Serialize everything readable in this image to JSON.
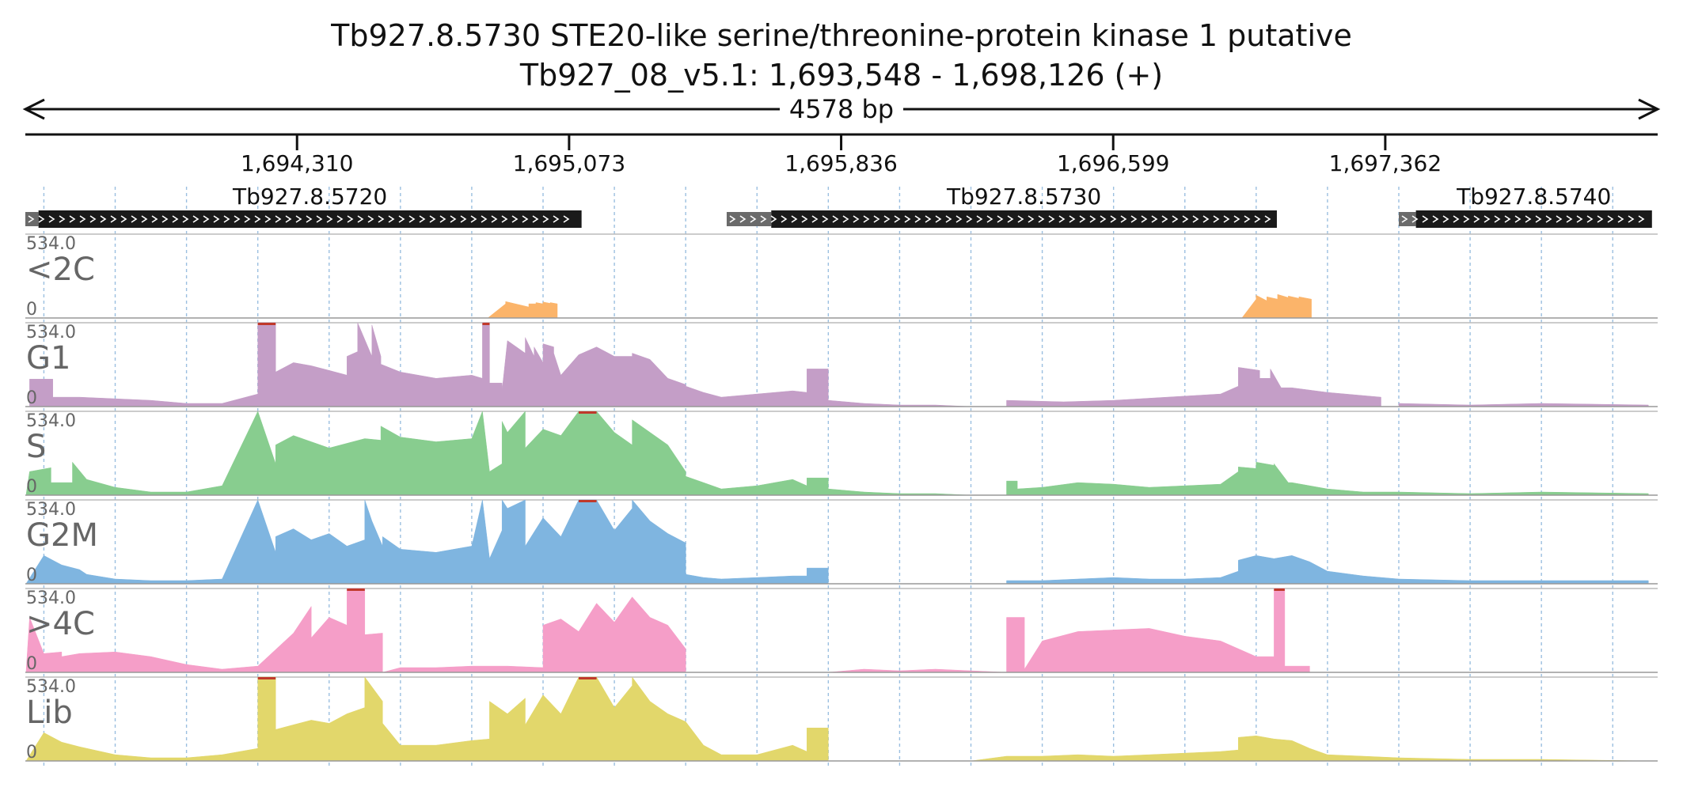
{
  "header": {
    "title": "Tb927.8.5730  STE20-like serine/threonine-protein kinase 1  putative",
    "location": "Tb927_08_v5.1: 1,693,548 - 1,698,126 (+)",
    "span_label": "4578 bp"
  },
  "chart_data": {
    "type": "area",
    "region": {
      "chromosome": "Tb927_08_v5.1",
      "start": 1693548,
      "end": 1698126,
      "strand": "+"
    },
    "x_ticks": [
      {
        "value": 1694310,
        "label": "1,694,310"
      },
      {
        "value": 1695073,
        "label": "1,695,073"
      },
      {
        "value": 1695836,
        "label": "1,695,836"
      },
      {
        "value": 1696599,
        "label": "1,696,599"
      },
      {
        "value": 1697362,
        "label": "1,697,362"
      }
    ],
    "grid": true,
    "genes": [
      {
        "name": "Tb927.8.5720",
        "utr5_start": 1693548,
        "start": 1693585,
        "end": 1695108
      },
      {
        "name": "Tb927.8.5730",
        "utr5_start": 1695515,
        "start": 1695640,
        "end": 1697058
      },
      {
        "name": "Tb927.8.5740",
        "utr5_start": 1697400,
        "start": 1697448,
        "end": 1698110
      }
    ],
    "tracks": [
      {
        "name": "<2C",
        "max_label": "534.0",
        "min_label": "0",
        "ylim": [
          0,
          534
        ],
        "color": "#fbb46a",
        "segments": [
          {
            "x": [
              1694845,
              1694895,
              1694895,
              1694960,
              1694960,
              1694980,
              1694980,
              1695000,
              1695000,
              1695020,
              1695020,
              1695040,
              1695040
            ],
            "y": [
              0,
              90,
              105,
              70,
              90,
              90,
              98,
              90,
              102,
              93,
              98,
              90,
              0
            ]
          },
          {
            "x": [
              1696960,
              1697000,
              1697000,
              1697030,
              1697030,
              1697060,
              1697060,
              1697090,
              1697090,
              1697120,
              1697120,
              1697155,
              1697155
            ],
            "y": [
              0,
              120,
              145,
              110,
              135,
              120,
              150,
              130,
              140,
              125,
              135,
              120,
              0
            ]
          }
        ]
      },
      {
        "name": "G1",
        "max_label": "534.0",
        "min_label": "0",
        "ylim": [
          0,
          534
        ],
        "color": "#c49ec7",
        "segments": [
          {
            "x": [
              1693550,
              1693560,
              1693560,
              1693625,
              1693625,
              1693700,
              1693800,
              1693900,
              1694000,
              1694100,
              1694200,
              1694200,
              1694250,
              1694250,
              1694300,
              1694350,
              1694400,
              1694450,
              1694450,
              1694480,
              1694480,
              1694520,
              1694520,
              1694545,
              1694545,
              1694600,
              1694700,
              1694800,
              1694830,
              1694830,
              1694850,
              1694850,
              1694885,
              1694885,
              1694900,
              1694950,
              1694950,
              1694975,
              1694975,
              1695000,
              1695000,
              1695030,
              1695030,
              1695050,
              1695100,
              1695150,
              1695200,
              1695250,
              1695250,
              1695300,
              1695350,
              1695400,
              1695400,
              1695450,
              1695500,
              1695600,
              1695700,
              1695740,
              1695740,
              1695800,
              1695800,
              1695900,
              1696000,
              1696100,
              1696200,
              1696300,
              1696300,
              1696460,
              1696600,
              1696750,
              1696900,
              1696950,
              1696950,
              1697010,
              1697010,
              1697040,
              1697040,
              1697070,
              1697100,
              1697200,
              1697300,
              1697350,
              1697350,
              1697400,
              1697400,
              1697600,
              1697800,
              1698100,
              1698100
            ],
            "y": [
              0,
              0,
              175,
              175,
              60,
              60,
              50,
              40,
              20,
              20,
              80,
              534,
              534,
              220,
              280,
              260,
              230,
              200,
              320,
              350,
              534,
              320,
              520,
              320,
              270,
              220,
              180,
              200,
              180,
              534,
              534,
              150,
              150,
              100,
              420,
              340,
              440,
              320,
              380,
              280,
              400,
              380,
              340,
              200,
              330,
              380,
              320,
              320,
              340,
              300,
              180,
              140,
              130,
              90,
              60,
              80,
              100,
              90,
              240,
              240,
              40,
              20,
              10,
              10,
              0,
              0,
              40,
              30,
              40,
              60,
              80,
              130,
              250,
              230,
              180,
              180,
              240,
              120,
              120,
              90,
              70,
              60,
              0,
              0,
              20,
              10,
              20,
              10,
              0
            ]
          }
        ]
      },
      {
        "name": "S",
        "max_label": "534.0",
        "min_label": "0",
        "ylim": [
          0,
          534
        ],
        "color": "#88cd8f",
        "segments": [
          {
            "x": [
              1693550,
              1693560,
              1693620,
              1693620,
              1693680,
              1693680,
              1693720,
              1693800,
              1693900,
              1694000,
              1694100,
              1694200,
              1694200,
              1694250,
              1694250,
              1694300,
              1694400,
              1694500,
              1694545,
              1694545,
              1694600,
              1694700,
              1694800,
              1694830,
              1694830,
              1694850,
              1694850,
              1694885,
              1694885,
              1694900,
              1694950,
              1694950,
              1695000,
              1695050,
              1695100,
              1695150,
              1695200,
              1695250,
              1695250,
              1695300,
              1695350,
              1695400,
              1695400,
              1695450,
              1695500,
              1695600,
              1695700,
              1695740,
              1695740,
              1695800,
              1695800,
              1695900,
              1696000,
              1696100,
              1696200,
              1696300,
              1696300,
              1696330,
              1696330,
              1696400,
              1696500,
              1696600,
              1696700,
              1696800,
              1696900,
              1696950,
              1696950,
              1697000,
              1697000,
              1697050,
              1697050,
              1697090,
              1697100,
              1697200,
              1697300,
              1697400,
              1697600,
              1697800,
              1698100,
              1698100
            ],
            "y": [
              0,
              150,
              175,
              80,
              80,
              210,
              100,
              50,
              20,
              20,
              60,
              534,
              534,
              200,
              320,
              380,
              300,
              360,
              350,
              440,
              370,
              340,
              360,
              534,
              534,
              150,
              150,
              200,
              470,
              400,
              534,
              300,
              420,
              380,
              534,
              534,
              400,
              320,
              480,
              400,
              320,
              150,
              120,
              80,
              40,
              60,
              100,
              60,
              110,
              110,
              40,
              20,
              10,
              10,
              0,
              0,
              90,
              90,
              40,
              50,
              80,
              70,
              50,
              60,
              70,
              150,
              180,
              170,
              210,
              190,
              200,
              80,
              80,
              40,
              20,
              20,
              10,
              20,
              10,
              0
            ]
          }
        ]
      },
      {
        "name": "G2M",
        "max_label": "534.0",
        "min_label": "0",
        "ylim": [
          0,
          534
        ],
        "color": "#7fb5e0",
        "segments": [
          {
            "x": [
              1693550,
              1693600,
              1693650,
              1693700,
              1693720,
              1693800,
              1693900,
              1694000,
              1694100,
              1694200,
              1694200,
              1694250,
              1694250,
              1694300,
              1694350,
              1694400,
              1694450,
              1694500,
              1694500,
              1694520,
              1694550,
              1694550,
              1694600,
              1694700,
              1694800,
              1694830,
              1694830,
              1694850,
              1694850,
              1694885,
              1694885,
              1694900,
              1694950,
              1694950,
              1695000,
              1695050,
              1695100,
              1695150,
              1695200,
              1695250,
              1695250,
              1695300,
              1695350,
              1695400,
              1695400,
              1695450,
              1695500,
              1695600,
              1695700,
              1695740,
              1695740,
              1695800,
              1695800,
              1695900,
              1696000,
              1696100,
              1696200,
              1696300,
              1696300,
              1696400,
              1696500,
              1696600,
              1696700,
              1696800,
              1696900,
              1696950,
              1696950,
              1697000,
              1697050,
              1697100,
              1697150,
              1697200,
              1697300,
              1697400,
              1697600,
              1697800,
              1698000,
              1698100,
              1698100
            ],
            "y": [
              0,
              180,
              120,
              90,
              60,
              30,
              20,
              20,
              30,
              534,
              534,
              200,
              300,
              350,
              280,
              320,
              240,
              280,
              534,
              400,
              240,
              300,
              220,
              200,
              240,
              534,
              534,
              160,
              160,
              340,
              534,
              480,
              534,
              240,
              420,
              300,
              534,
              534,
              340,
              480,
              534,
              400,
              320,
              260,
              60,
              40,
              30,
              40,
              50,
              50,
              100,
              100,
              0,
              0,
              0,
              0,
              0,
              0,
              20,
              20,
              30,
              40,
              30,
              30,
              40,
              80,
              150,
              180,
              160,
              180,
              140,
              80,
              50,
              30,
              20,
              20,
              20,
              20,
              0
            ]
          }
        ]
      },
      {
        "name": ">4C",
        "max_label": "534.0",
        "min_label": "0",
        "ylim": [
          0,
          534
        ],
        "color": "#f59ec8",
        "segments": [
          {
            "x": [
              1693550,
              1693560,
              1693600,
              1693650,
              1693650,
              1693700,
              1693800,
              1693900,
              1694000,
              1694100,
              1694200,
              1694300,
              1694350,
              1694350,
              1694400,
              1694450,
              1694450,
              1694500,
              1694500,
              1694550,
              1694550,
              1694600,
              1694700,
              1694800,
              1694900,
              1695000,
              1695000,
              1695050,
              1695100,
              1695150,
              1695200,
              1695250,
              1695300,
              1695350,
              1695400,
              1695400,
              1695500,
              1695700,
              1695800,
              1695900,
              1696000,
              1696100,
              1696200,
              1696300,
              1696300,
              1696350,
              1696350,
              1696400,
              1696500,
              1696600,
              1696700,
              1696800,
              1696900,
              1697000,
              1697050,
              1697050,
              1697080,
              1697080,
              1697150,
              1697150,
              1697300,
              1697500,
              1697800,
              1698100,
              1698100
            ],
            "y": [
              0,
              350,
              120,
              130,
              100,
              120,
              130,
              100,
              50,
              20,
              40,
              250,
              420,
              220,
              350,
              300,
              534,
              534,
              240,
              250,
              0,
              30,
              30,
              40,
              40,
              30,
              300,
              340,
              260,
              440,
              320,
              480,
              350,
              300,
              150,
              0,
              0,
              0,
              0,
              20,
              10,
              20,
              10,
              0,
              350,
              350,
              20,
              200,
              260,
              270,
              280,
              230,
              200,
              100,
              100,
              534,
              534,
              40,
              40,
              0,
              0,
              0,
              0,
              0,
              0
            ]
          }
        ]
      },
      {
        "name": "Lib",
        "max_label": "534.0",
        "min_label": "0",
        "ylim": [
          0,
          534
        ],
        "color": "#e2d76b",
        "segments": [
          {
            "x": [
              1693550,
              1693600,
              1693650,
              1693700,
              1693800,
              1693900,
              1694000,
              1694100,
              1694200,
              1694200,
              1694250,
              1694250,
              1694300,
              1694350,
              1694400,
              1694450,
              1694500,
              1694500,
              1694550,
              1694550,
              1694600,
              1694700,
              1694800,
              1694850,
              1694850,
              1694900,
              1694950,
              1694950,
              1695000,
              1695050,
              1695100,
              1695150,
              1695200,
              1695250,
              1695250,
              1695300,
              1695350,
              1695400,
              1695450,
              1695500,
              1695600,
              1695700,
              1695740,
              1695740,
              1695800,
              1695800,
              1696000,
              1696200,
              1696300,
              1696400,
              1696500,
              1696600,
              1696700,
              1696800,
              1696900,
              1696950,
              1696950,
              1697000,
              1697050,
              1697100,
              1697150,
              1697200,
              1697300,
              1697400,
              1697600,
              1697800,
              1698100,
              1698100
            ],
            "y": [
              0,
              180,
              120,
              90,
              40,
              20,
              20,
              40,
              80,
              534,
              534,
              200,
              230,
              260,
              240,
              300,
              340,
              534,
              380,
              240,
              100,
              100,
              130,
              140,
              380,
              300,
              400,
              230,
              420,
              300,
              534,
              534,
              340,
              480,
              534,
              380,
              300,
              250,
              100,
              40,
              40,
              100,
              60,
              210,
              210,
              0,
              0,
              0,
              30,
              30,
              40,
              30,
              40,
              50,
              60,
              70,
              150,
              160,
              140,
              130,
              80,
              40,
              30,
              20,
              10,
              10,
              0,
              0
            ]
          }
        ]
      }
    ]
  }
}
